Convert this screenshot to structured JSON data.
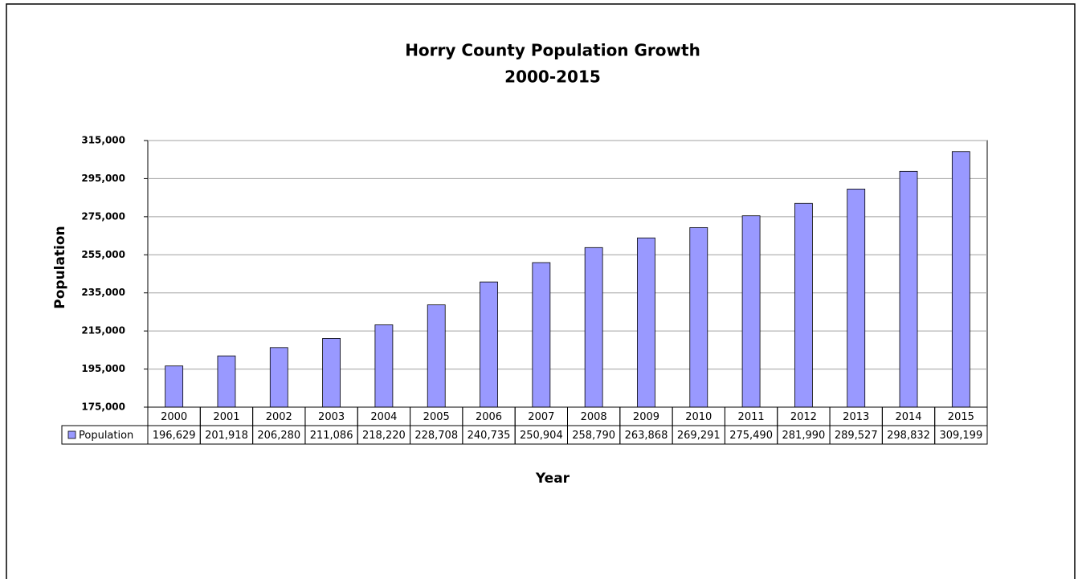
{
  "chart_data": {
    "type": "bar",
    "title": "Horry County Population Growth",
    "subtitle": "2000-2015",
    "x_label": "Year",
    "y_label": "Population",
    "categories": [
      "2000",
      "2001",
      "2002",
      "2003",
      "2004",
      "2005",
      "2006",
      "2007",
      "2008",
      "2009",
      "2010",
      "2011",
      "2012",
      "2013",
      "2014",
      "2015"
    ],
    "series": [
      {
        "name": "Population",
        "color": "#9999ff",
        "values": [
          196629,
          201918,
          206280,
          211086,
          218220,
          228708,
          240735,
          250904,
          258790,
          263868,
          269291,
          275490,
          281990,
          289527,
          298832,
          309199
        ],
        "value_labels": [
          "196,629",
          "201,918",
          "206,280",
          "211,086",
          "218,220",
          "228,708",
          "240,735",
          "250,904",
          "258,790",
          "263,868",
          "269,291",
          "275,490",
          "281,990",
          "289,527",
          "298,832",
          "309,199"
        ]
      }
    ],
    "ylim": [
      175000,
      315000
    ],
    "yticks": [
      {
        "value": 175000,
        "label": "175,000"
      },
      {
        "value": 195000,
        "label": "195,000"
      },
      {
        "value": 215000,
        "label": "215,000"
      },
      {
        "value": 235000,
        "label": "235,000"
      },
      {
        "value": 255000,
        "label": "255,000"
      },
      {
        "value": 275000,
        "label": "275,000"
      },
      {
        "value": 295000,
        "label": "295,000"
      },
      {
        "value": 315000,
        "label": "315,000"
      }
    ],
    "grid": true
  }
}
